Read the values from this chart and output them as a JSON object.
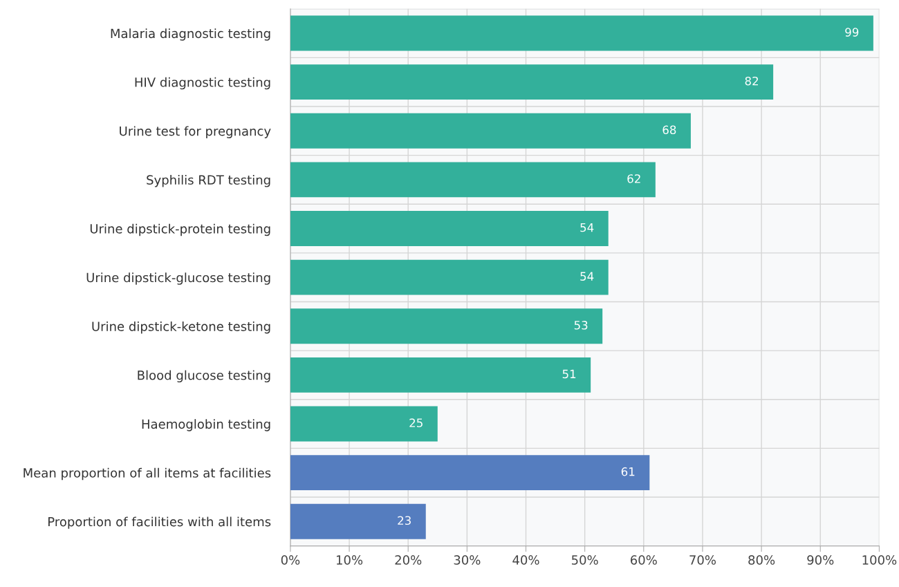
{
  "chart_data": {
    "type": "bar",
    "orientation": "horizontal",
    "categories": [
      "Malaria diagnostic testing",
      "HIV diagnostic testing",
      "Urine test for pregnancy",
      "Syphilis RDT testing",
      "Urine dipstick-protein testing",
      "Urine dipstick-glucose testing",
      "Urine dipstick-ketone testing",
      "Blood glucose testing",
      "Haemoglobin testing",
      "Mean proportion of all items at facilities",
      "Proportion of facilities with all items"
    ],
    "values": [
      99,
      82,
      68,
      62,
      54,
      54,
      53,
      51,
      25,
      61,
      23
    ],
    "colors": [
      "#33b09b",
      "#33b09b",
      "#33b09b",
      "#33b09b",
      "#33b09b",
      "#33b09b",
      "#33b09b",
      "#33b09b",
      "#33b09b",
      "#557dbf",
      "#557dbf"
    ],
    "xlim": [
      0,
      100
    ],
    "xticks": [
      {
        "value": 0,
        "label": "0%"
      },
      {
        "value": 10,
        "label": "10%"
      },
      {
        "value": 20,
        "label": "20%"
      },
      {
        "value": 30,
        "label": "30%"
      },
      {
        "value": 40,
        "label": "40%"
      },
      {
        "value": 50,
        "label": "50%"
      },
      {
        "value": 60,
        "label": "60%"
      },
      {
        "value": 70,
        "label": "70%"
      },
      {
        "value": 80,
        "label": "80%"
      },
      {
        "value": 90,
        "label": "90%"
      },
      {
        "value": 100,
        "label": "100%"
      }
    ],
    "grid": true,
    "data_labels": true
  }
}
